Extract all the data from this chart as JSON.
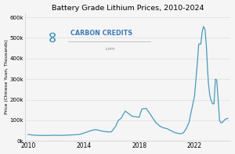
{
  "title": "Battery Grade Lithium Prices, 2010-2024",
  "ylabel": "Price (Chinese Yuan, Thousands)",
  "xlabel": "",
  "background_color": "#f5f5f5",
  "line_color": "#4a9aba",
  "line_width": 0.9,
  "ylim": [
    0,
    620000
  ],
  "yticks": [
    0,
    100000,
    200000,
    300000,
    400000,
    500000,
    600000
  ],
  "ytick_labels": [
    "0k",
    "100k",
    "200k",
    "300k",
    "400k",
    "500k",
    "600k"
  ],
  "xticks": [
    2010,
    2014,
    2018,
    2022
  ],
  "logo_text": "CARBON CREDITS",
  "logo_subtext": ".com",
  "years": [
    2010.0,
    2010.2,
    2010.5,
    2011.0,
    2011.5,
    2012.0,
    2012.3,
    2012.7,
    2013.0,
    2013.3,
    2013.7,
    2014.0,
    2014.3,
    2014.6,
    2014.9,
    2015.2,
    2015.5,
    2015.8,
    2016.0,
    2016.3,
    2016.5,
    2016.7,
    2017.0,
    2017.3,
    2017.5,
    2017.7,
    2018.0,
    2018.2,
    2018.5,
    2018.7,
    2019.0,
    2019.2,
    2019.5,
    2019.7,
    2020.0,
    2020.3,
    2020.6,
    2020.9,
    2021.0,
    2021.2,
    2021.4,
    2021.6,
    2021.75,
    2021.85,
    2022.0,
    2022.1,
    2022.2,
    2022.3,
    2022.45,
    2022.55,
    2022.65,
    2022.75,
    2022.85,
    2022.95,
    2023.0,
    2023.1,
    2023.2,
    2023.3,
    2023.4,
    2023.5,
    2023.6,
    2023.7,
    2023.8,
    2023.9,
    2024.0,
    2024.2,
    2024.4
  ],
  "prices": [
    32000,
    30000,
    28000,
    27000,
    27000,
    28000,
    27000,
    28000,
    29000,
    30000,
    32000,
    38000,
    45000,
    52000,
    55000,
    50000,
    46000,
    44000,
    44000,
    70000,
    100000,
    110000,
    145000,
    130000,
    120000,
    118000,
    115000,
    155000,
    158000,
    140000,
    110000,
    90000,
    72000,
    65000,
    60000,
    50000,
    40000,
    36000,
    35000,
    40000,
    60000,
    90000,
    140000,
    170000,
    220000,
    300000,
    380000,
    470000,
    470000,
    530000,
    555000,
    540000,
    460000,
    330000,
    280000,
    220000,
    195000,
    180000,
    180000,
    300000,
    295000,
    200000,
    100000,
    88000,
    90000,
    105000,
    110000
  ]
}
